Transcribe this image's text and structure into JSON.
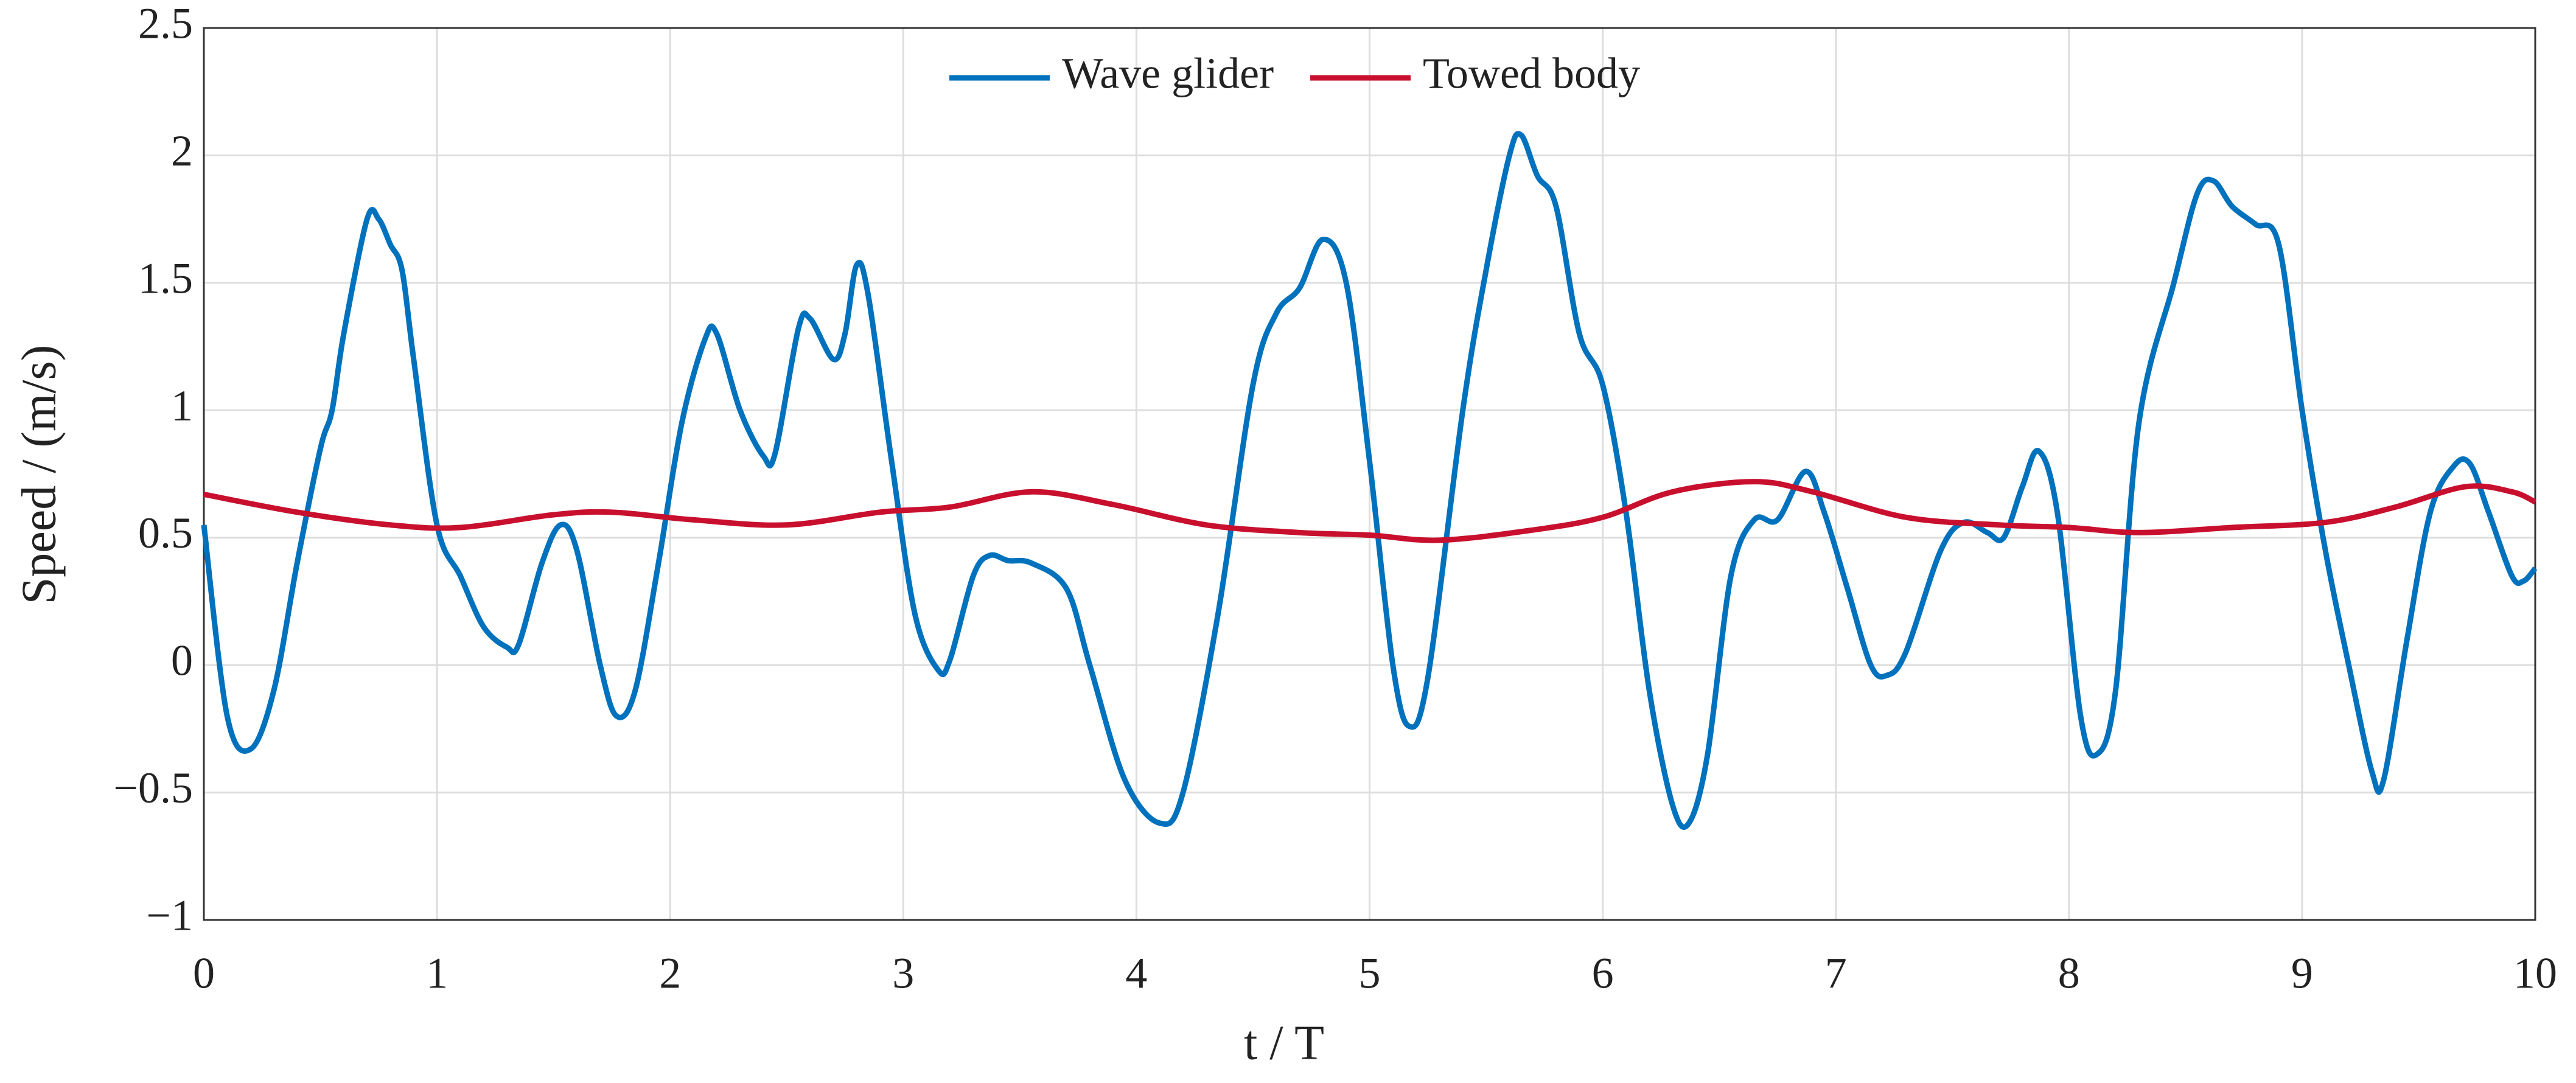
{
  "chart_data": {
    "type": "line",
    "xlabel": "t / T",
    "ylabel": "Speed / (m/s)",
    "xlim": [
      0,
      10
    ],
    "xticks": [
      0,
      1,
      2,
      3,
      4,
      5,
      6,
      7,
      8,
      9,
      10
    ],
    "ylim": [
      -1,
      2.5
    ],
    "yticks": [
      {
        "value": -1,
        "label": "−1"
      },
      {
        "value": -0.5,
        "label": "−0.5"
      },
      0,
      0.5,
      1,
      1.5,
      2,
      2.5
    ],
    "grid": true,
    "legend": "top",
    "series": [
      {
        "name": "Wave glider",
        "color": "#0072bd",
        "x": [
          0,
          0.1,
          0.2,
          0.3,
          0.4,
          0.5,
          0.55,
          0.6,
          0.7,
          0.75,
          0.8,
          0.85,
          0.9,
          1.0,
          1.1,
          1.2,
          1.3,
          1.35,
          1.45,
          1.53,
          1.6,
          1.7,
          1.77,
          1.85,
          1.95,
          2.05,
          2.15,
          2.2,
          2.3,
          2.4,
          2.45,
          2.55,
          2.6,
          2.7,
          2.75,
          2.8,
          2.85,
          2.95,
          3.05,
          3.15,
          3.2,
          3.3,
          3.37,
          3.45,
          3.55,
          3.7,
          3.8,
          3.95,
          4.1,
          4.2,
          4.35,
          4.5,
          4.6,
          4.7,
          4.8,
          4.9,
          5.0,
          5.1,
          5.17,
          5.25,
          5.4,
          5.5,
          5.6,
          5.65,
          5.72,
          5.8,
          5.9,
          6.0,
          6.1,
          6.2,
          6.3,
          6.37,
          6.45,
          6.55,
          6.65,
          6.75,
          6.87,
          6.95,
          7.05,
          7.15,
          7.22,
          7.3,
          7.45,
          7.55,
          7.65,
          7.72,
          7.8,
          7.87,
          7.95,
          8.05,
          8.12,
          8.2,
          8.3,
          8.45,
          8.55,
          8.62,
          8.7,
          8.8,
          8.9,
          9.0,
          9.1,
          9.2,
          9.3,
          9.35,
          9.45,
          9.55,
          9.65,
          9.72,
          9.8,
          9.9,
          9.95,
          10
        ],
        "values": [
          0.55,
          -0.2,
          -0.33,
          -0.1,
          0.4,
          0.85,
          1.0,
          1.3,
          1.75,
          1.75,
          1.65,
          1.55,
          1.2,
          0.55,
          0.35,
          0.15,
          0.07,
          0.08,
          0.4,
          0.55,
          0.45,
          0,
          -0.2,
          -0.1,
          0.4,
          0.95,
          1.28,
          1.3,
          1.0,
          0.82,
          0.83,
          1.32,
          1.36,
          1.2,
          1.3,
          1.57,
          1.45,
          0.8,
          0.2,
          -0.02,
          0.02,
          0.35,
          0.43,
          0.41,
          0.4,
          0.3,
          0.0,
          -0.45,
          -0.62,
          -0.5,
          0.2,
          1.1,
          1.38,
          1.48,
          1.67,
          1.5,
          0.8,
          0.0,
          -0.24,
          -0.05,
          1.0,
          1.55,
          2.0,
          2.08,
          1.92,
          1.8,
          1.3,
          1.1,
          0.6,
          -0.1,
          -0.55,
          -0.62,
          -0.35,
          0.35,
          0.57,
          0.57,
          0.76,
          0.6,
          0.3,
          0.0,
          -0.04,
          0.05,
          0.45,
          0.56,
          0.52,
          0.5,
          0.7,
          0.84,
          0.6,
          -0.2,
          -0.35,
          -0.1,
          0.95,
          1.5,
          1.85,
          1.9,
          1.8,
          1.73,
          1.65,
          1.0,
          0.45,
          0.0,
          -0.42,
          -0.45,
          0.1,
          0.6,
          0.78,
          0.79,
          0.6,
          0.35,
          0.33,
          0.38
        ]
      },
      {
        "name": "Towed body",
        "color": "#c8102e",
        "x": [
          0,
          0.4,
          0.8,
          1.1,
          1.5,
          1.75,
          2.1,
          2.5,
          2.9,
          3.2,
          3.55,
          3.9,
          4.3,
          4.7,
          5.0,
          5.3,
          5.7,
          6.0,
          6.3,
          6.65,
          6.9,
          7.3,
          7.7,
          8.0,
          8.3,
          8.7,
          9.1,
          9.4,
          9.7,
          9.9,
          10
        ],
        "values": [
          0.67,
          0.6,
          0.55,
          0.54,
          0.59,
          0.6,
          0.57,
          0.55,
          0.6,
          0.62,
          0.68,
          0.63,
          0.55,
          0.52,
          0.51,
          0.49,
          0.53,
          0.58,
          0.68,
          0.72,
          0.68,
          0.58,
          0.55,
          0.54,
          0.52,
          0.54,
          0.56,
          0.62,
          0.7,
          0.68,
          0.64
        ]
      }
    ]
  }
}
